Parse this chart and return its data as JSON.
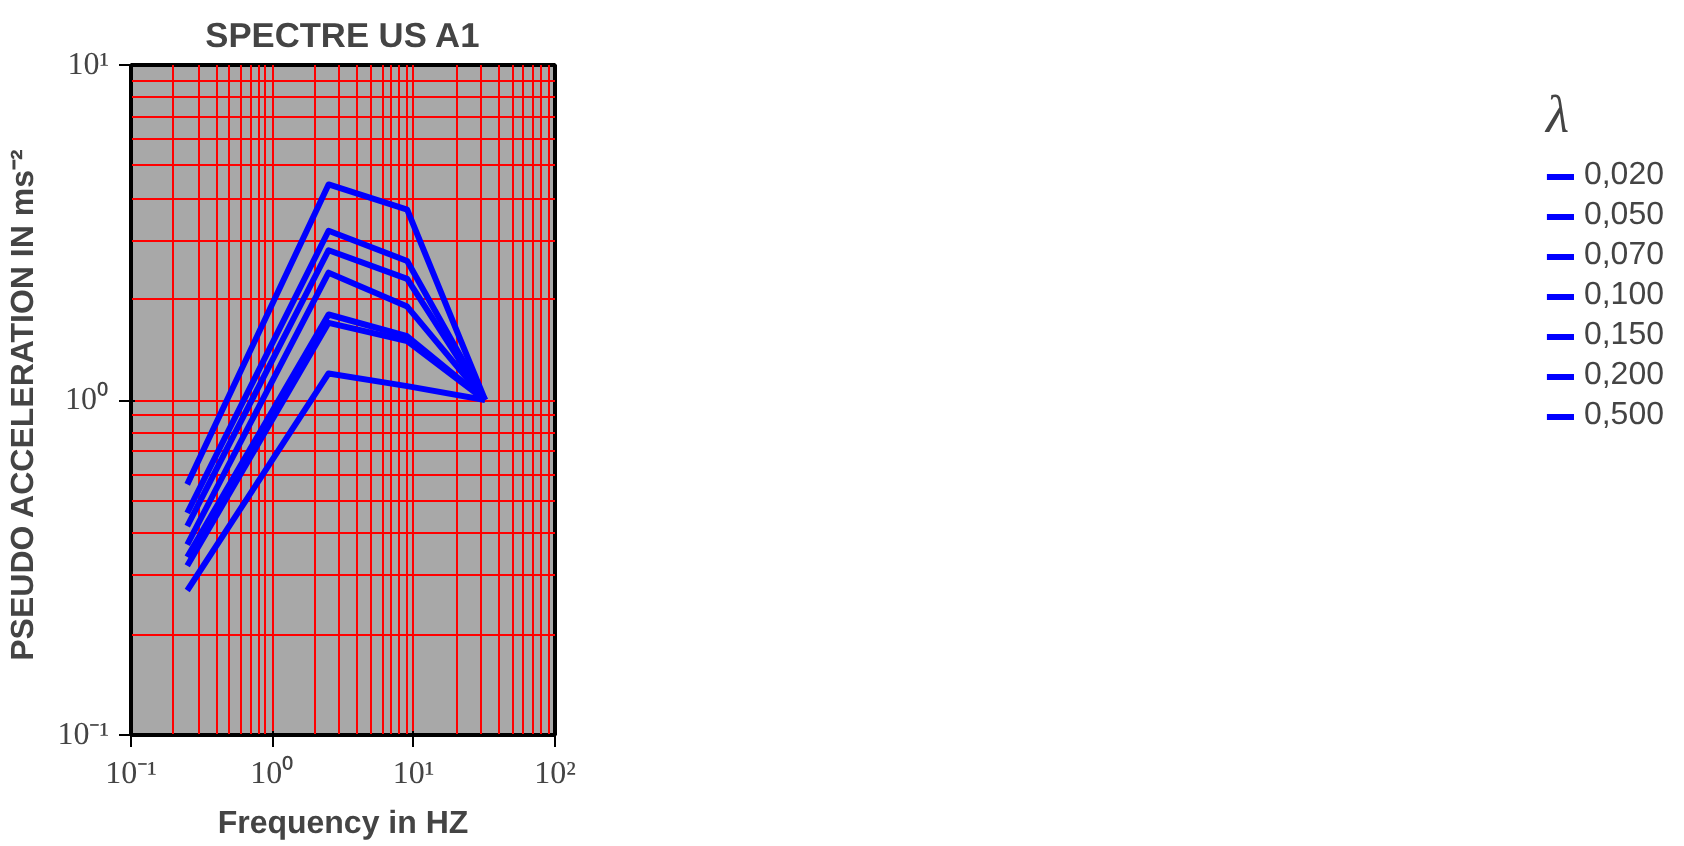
{
  "chart_data": {
    "type": "line",
    "title": "SPECTRE US A1",
    "xlabel": "Frequency in HZ",
    "ylabel": "PSEUDO ACCELERATION IN  ms⁻²",
    "legend_title": "λ",
    "log": "xy",
    "grid": true,
    "legend": "right",
    "line_style": "solid",
    "marker": "none",
    "x": [
      0.25,
      2.5,
      9,
      32
    ],
    "xlim": [
      0.1,
      100
    ],
    "ylim": [
      0.1,
      10
    ],
    "xticks": [
      {
        "value": 0.1,
        "label": "10⁻¹"
      },
      {
        "value": 1,
        "label": "10⁰"
      },
      {
        "value": 10,
        "label": "10¹"
      },
      {
        "value": 100,
        "label": "10²"
      }
    ],
    "yticks": [
      {
        "value": 0.1,
        "label": "10⁻¹"
      },
      {
        "value": 1,
        "label": "10⁰"
      },
      {
        "value": 10,
        "label": "10¹"
      }
    ],
    "series": [
      {
        "name": "0,020",
        "color": "#0000ff",
        "values": [
          0.56,
          4.4,
          3.7,
          1.0
        ]
      },
      {
        "name": "0,050",
        "color": "#0000ff",
        "values": [
          0.46,
          3.2,
          2.6,
          1.0
        ]
      },
      {
        "name": "0,070",
        "color": "#0000ff",
        "values": [
          0.42,
          2.8,
          2.3,
          1.0
        ]
      },
      {
        "name": "0,100",
        "color": "#0000ff",
        "values": [
          0.37,
          2.4,
          1.9,
          1.0
        ]
      },
      {
        "name": "0,150",
        "color": "#0000ff",
        "values": [
          0.34,
          1.8,
          1.55,
          1.0
        ]
      },
      {
        "name": "0,200",
        "color": "#0000ff",
        "values": [
          0.32,
          1.7,
          1.5,
          1.0
        ]
      },
      {
        "name": "0,500",
        "color": "#0000ff",
        "values": [
          0.27,
          1.2,
          1.1,
          1.0
        ]
      }
    ]
  }
}
